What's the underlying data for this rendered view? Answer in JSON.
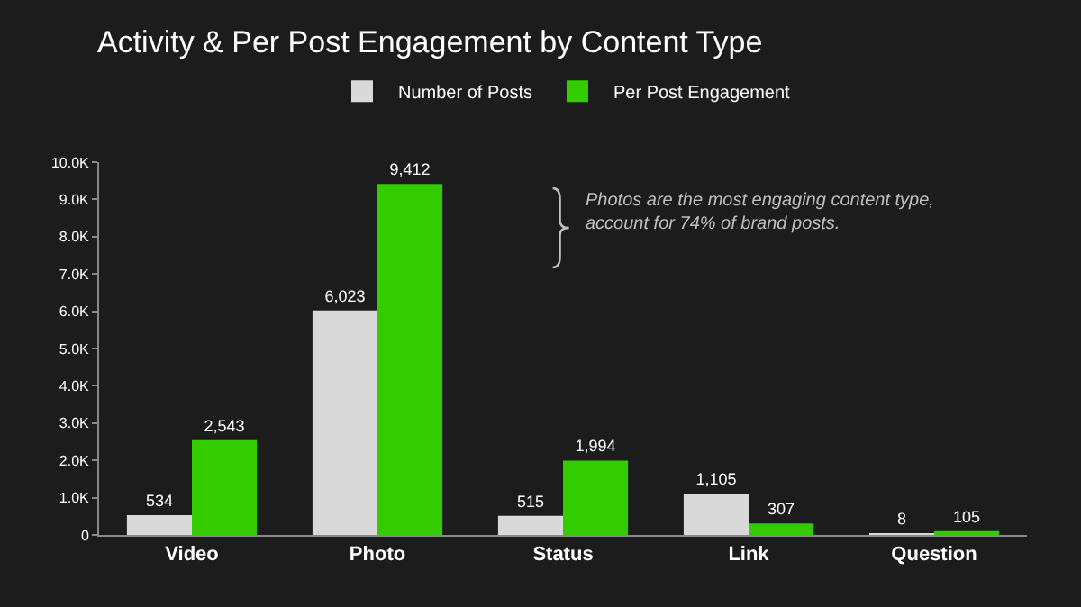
{
  "chart_data": {
    "type": "bar",
    "title": "Activity & Per Post Engagement by Content Type",
    "categories": [
      "Video",
      "Photo",
      "Status",
      "Link",
      "Question"
    ],
    "series": [
      {
        "name": "Number of Posts",
        "color": "#d9d9d9",
        "values": [
          534,
          6023,
          515,
          1105,
          8
        ],
        "value_labels": [
          "534",
          "6,023",
          "515",
          "1,105",
          "8"
        ]
      },
      {
        "name": "Per Post Engagement",
        "color": "#33cc00",
        "values": [
          2543,
          9412,
          1994,
          307,
          105
        ],
        "value_labels": [
          "2,543",
          "9,412",
          "1,994",
          "307",
          "105"
        ]
      }
    ],
    "ylim": [
      0,
      10000
    ],
    "yticks": [
      0,
      {
        "value": 1000,
        "label": "1.0K"
      },
      {
        "value": 2000,
        "label": "2.0K"
      },
      {
        "value": 3000,
        "label": "3.0K"
      },
      {
        "value": 4000,
        "label": "4.0K"
      },
      {
        "value": 5000,
        "label": "5.0K"
      },
      {
        "value": 6000,
        "label": "6.0K"
      },
      {
        "value": 7000,
        "label": "7.0K"
      },
      {
        "value": 8000,
        "label": "8.0K"
      },
      {
        "value": 9000,
        "label": "9.0K"
      },
      {
        "value": 10000,
        "label": "10.0K"
      }
    ],
    "legend": "top",
    "annotations": [
      "Photos are the most engaging content type, account for 74% of brand posts."
    ]
  }
}
